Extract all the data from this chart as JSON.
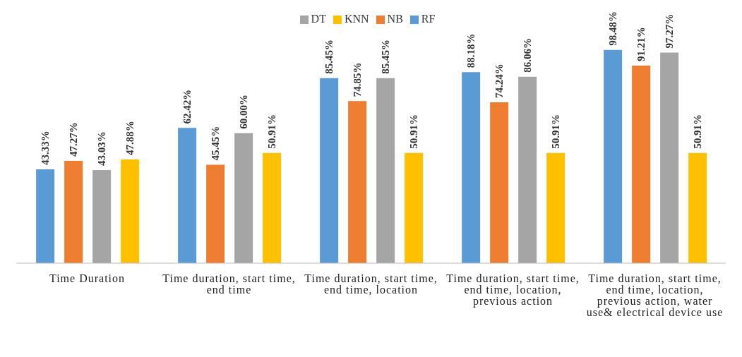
{
  "chart_data": {
    "type": "bar",
    "categories": [
      "Time Duration",
      "Time duration, start time, end time",
      "Time duration, start time, end time, location",
      "Time duration, start time, end time, location, previous action",
      "Time duration, start time, end time, location, previous action, water use& electrical device use"
    ],
    "series": [
      {
        "name": "RF",
        "color": "#5b9bd5",
        "values": [
          43.33,
          62.42,
          85.45,
          88.18,
          98.48
        ],
        "value_labels": [
          "43.33%",
          "62.42%",
          "85.45%",
          "88.18%",
          "98.48%"
        ]
      },
      {
        "name": "NB",
        "color": "#ed7d31",
        "values": [
          47.27,
          45.45,
          74.85,
          74.24,
          91.21
        ],
        "value_labels": [
          "47.27%",
          "45.45%",
          "74.85%",
          "74.24%",
          "91.21%"
        ]
      },
      {
        "name": "DT",
        "color": "#a5a5a5",
        "values": [
          43.03,
          60.0,
          85.45,
          86.06,
          97.27
        ],
        "value_labels": [
          "43.03%",
          "60.00%",
          "85.45%",
          "86.06%",
          "97.27%"
        ]
      },
      {
        "name": "KNN",
        "color": "#ffc000",
        "values": [
          47.88,
          50.91,
          50.91,
          50.91,
          50.91
        ],
        "value_labels": [
          "47.88%",
          "50.91%",
          "50.91%",
          "50.91%",
          "50.91%"
        ]
      }
    ],
    "legend": "top",
    "grid": false
  }
}
